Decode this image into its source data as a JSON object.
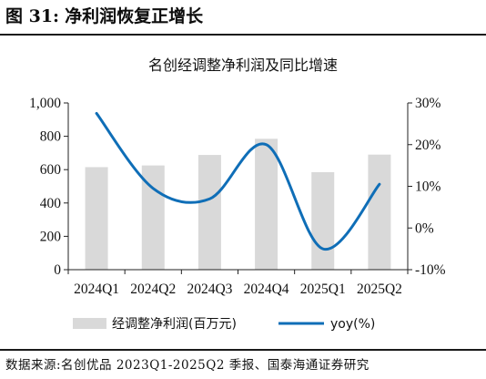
{
  "figure": {
    "label": "图 31:",
    "title": "净利润恢复正增长",
    "source": "数据来源:名创优品 2023Q1-2025Q2 季报、国泰海通证券研究"
  },
  "chart_data": {
    "type": "bar",
    "title": "名创经调整净利润及同比增速",
    "categories": [
      "2024Q1",
      "2024Q2",
      "2024Q3",
      "2024Q4",
      "2025Q1",
      "2025Q2"
    ],
    "series": [
      {
        "name": "经调整净利润(百万元)",
        "type": "bar",
        "axis": "left",
        "color": "#d9d9d9",
        "values": [
          615,
          625,
          688,
          785,
          585,
          690
        ]
      },
      {
        "name": "yoy(%)",
        "type": "line",
        "axis": "right",
        "color": "#0f6eb7",
        "smooth": true,
        "values": [
          27.5,
          9.5,
          7.0,
          20.0,
          -5.0,
          10.5
        ]
      }
    ],
    "y_left": {
      "lim": [
        0,
        1000
      ],
      "ticks": [
        0,
        200,
        400,
        600,
        800,
        1000
      ],
      "tick_labels": [
        "0",
        "200",
        "400",
        "600",
        "800",
        "1,000"
      ]
    },
    "y_right": {
      "lim": [
        -10,
        30
      ],
      "ticks": [
        -10,
        0,
        10,
        20,
        30
      ],
      "tick_labels": [
        "-10%",
        "0%",
        "10%",
        "20%",
        "30%"
      ]
    },
    "grid": false,
    "legend_position": "bottom"
  }
}
